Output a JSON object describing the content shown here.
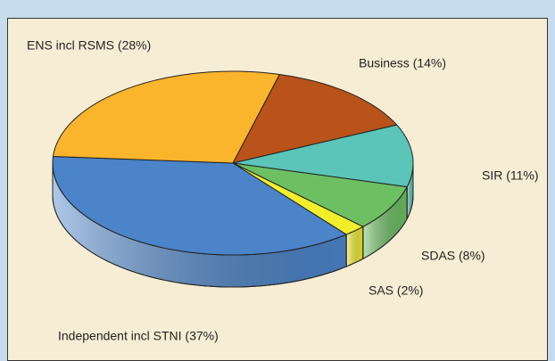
{
  "chart_data": {
    "type": "pie",
    "categories": [
      "Business (14%)",
      "SIR (11%)",
      "SDAS (8%)",
      "SAS (2%)",
      "Independent incl STNI (37%)",
      "ENS incl RSMS (28%)"
    ],
    "values": [
      14,
      11,
      8,
      2,
      37,
      28
    ],
    "colors": [
      "#b9531a",
      "#5bc5b9",
      "#6cc062",
      "#f2ee2a",
      "#4b84c9",
      "#fbb52d"
    ]
  }
}
